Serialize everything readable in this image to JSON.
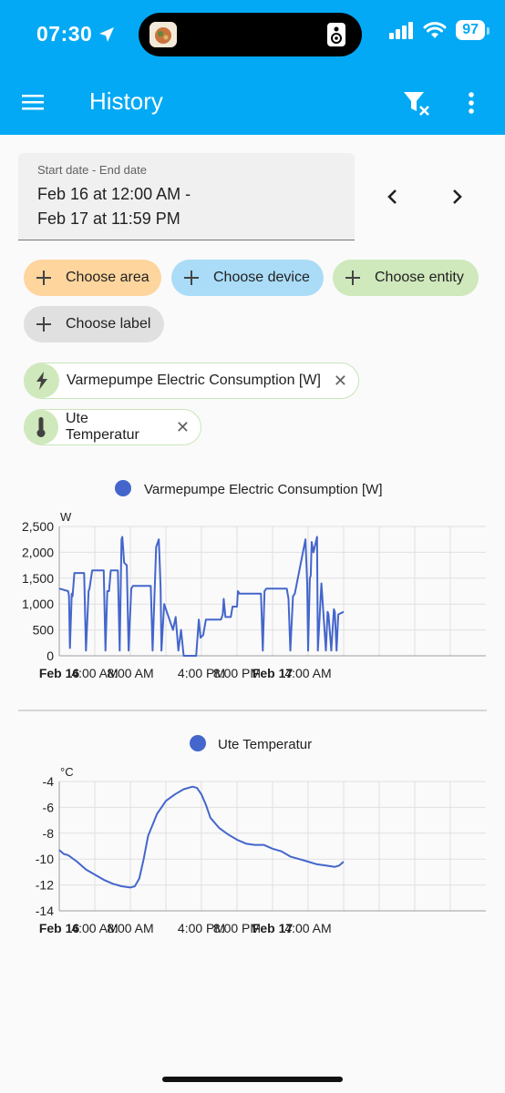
{
  "status_bar": {
    "time": "07:30",
    "battery": "97"
  },
  "app_bar": {
    "title": "History"
  },
  "date_range": {
    "label": "Start date - End date",
    "value": "Feb 16 at 12:00 AM -\nFeb 17 at 11:59 PM"
  },
  "chips": {
    "area": "Choose area",
    "device": "Choose device",
    "entity": "Choose entity",
    "label": "Choose label"
  },
  "selected": [
    {
      "name": "Varmepumpe Electric Consumption [W]",
      "icon": "lightning-icon"
    },
    {
      "name": "Ute Temperatur",
      "icon": "thermometer-icon"
    }
  ],
  "colors": {
    "primary": "#03a9f4",
    "series": "#4466cc"
  },
  "chart_data": [
    {
      "type": "line",
      "legend": "Varmepumpe Electric Consumption [W]",
      "ylabel": "W",
      "ylim": [
        0,
        2500
      ],
      "yticks": [
        "2,500",
        "2,000",
        "1,500",
        "1,000",
        "500",
        "0"
      ],
      "xlim": [
        0,
        48
      ],
      "xticks": [
        {
          "h": 0,
          "label": "Feb 16",
          "bold": true
        },
        {
          "h": 4,
          "label": "4:00 AM"
        },
        {
          "h": 8,
          "label": "8:00 AM"
        },
        {
          "h": 16,
          "label": "4:00 PM"
        },
        {
          "h": 20,
          "label": "8:00 PM"
        },
        {
          "h": 24,
          "label": "Feb 17",
          "bold": true
        },
        {
          "h": 28,
          "label": "4:00 AM"
        }
      ],
      "x": [
        0,
        1,
        1.1,
        1.2,
        1.4,
        1.5,
        1.7,
        2.8,
        3.0,
        3.3,
        3.4,
        3.7,
        5.0,
        5.2,
        5.4,
        5.6,
        5.8,
        6.6,
        6.8,
        7.0,
        7.1,
        7.3,
        7.6,
        7.8,
        8.1,
        8.3,
        10.3,
        10.5,
        10.9,
        11.2,
        11.3,
        11.4,
        11.5,
        11.8,
        12.8,
        13.1,
        13.4,
        13.7,
        14.0,
        15.4,
        15.7,
        15.9,
        16.2,
        16.5,
        18.2,
        18.4,
        18.5,
        18.7,
        19.3,
        19.5,
        20.0,
        20.1,
        20.3,
        22.7,
        22.9,
        23.1,
        23.3,
        23.5,
        24.0,
        25.6,
        25.8,
        26.0,
        26.3,
        26.5,
        27.7,
        27.9,
        28.0,
        28.2,
        28.3,
        28.4,
        28.6,
        29.0,
        29.1,
        29.5,
        30.0,
        30.2,
        30.3,
        30.6,
        30.9,
        31.0,
        31.2,
        31.4,
        32.0
      ],
      "y": [
        1300,
        1250,
        1150,
        150,
        1200,
        1150,
        1600,
        1600,
        100,
        1250,
        1300,
        1650,
        1650,
        100,
        1250,
        1250,
        1650,
        1650,
        100,
        2250,
        2300,
        1800,
        1750,
        100,
        1300,
        1350,
        1350,
        100,
        2100,
        2250,
        1800,
        1300,
        100,
        1000,
        500,
        750,
        100,
        500,
        0,
        0,
        700,
        350,
        400,
        700,
        700,
        800,
        1100,
        750,
        750,
        950,
        950,
        1250,
        1200,
        1200,
        100,
        1250,
        1300,
        1300,
        1300,
        1300,
        1100,
        100,
        1150,
        1200,
        2250,
        1400,
        100,
        1500,
        1550,
        2200,
        2000,
        2300,
        100,
        1400,
        100,
        850,
        800,
        100,
        900,
        850,
        100,
        800,
        850
      ]
    },
    {
      "type": "line",
      "legend": "Ute Temperatur",
      "ylabel": "°C",
      "ylim": [
        -14,
        -4
      ],
      "yticks": [
        "-4",
        "-6",
        "-8",
        "-10",
        "-12",
        "-14"
      ],
      "xlim": [
        0,
        48
      ],
      "xticks": [
        {
          "h": 0,
          "label": "Feb 16",
          "bold": true
        },
        {
          "h": 4,
          "label": "4:00 AM"
        },
        {
          "h": 8,
          "label": "8:00 AM"
        },
        {
          "h": 16,
          "label": "4:00 PM"
        },
        {
          "h": 20,
          "label": "8:00 PM"
        },
        {
          "h": 24,
          "label": "Feb 17",
          "bold": true
        },
        {
          "h": 28,
          "label": "4:00 AM"
        }
      ],
      "x": [
        0,
        0.5,
        1,
        2,
        3,
        4,
        5,
        6,
        7,
        8,
        8.5,
        9,
        9.5,
        10,
        11,
        12,
        13,
        14,
        15,
        15.5,
        16,
        16.5,
        17,
        18,
        19,
        20,
        21,
        22,
        23,
        24,
        25,
        26,
        27,
        28,
        29,
        30,
        31,
        31.5,
        32
      ],
      "y": [
        -9.3,
        -9.6,
        -9.7,
        -10.2,
        -10.8,
        -11.2,
        -11.6,
        -11.9,
        -12.1,
        -12.2,
        -12.1,
        -11.5,
        -10,
        -8.2,
        -6.5,
        -5.5,
        -5,
        -4.6,
        -4.4,
        -4.5,
        -5,
        -5.8,
        -6.8,
        -7.6,
        -8.1,
        -8.5,
        -8.8,
        -8.9,
        -8.9,
        -9.2,
        -9.4,
        -9.8,
        -10,
        -10.2,
        -10.4,
        -10.5,
        -10.6,
        -10.5,
        -10.2
      ]
    }
  ]
}
